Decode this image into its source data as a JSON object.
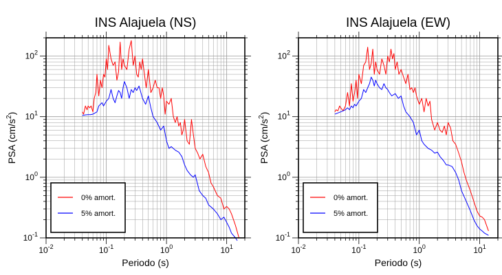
{
  "chart_data": [
    {
      "type": "line",
      "title": "INS Alajuela (NS)",
      "xlabel": "Periodo (s)",
      "ylabel_main": "PSA (cm/s",
      "ylabel_sup": "2",
      "ylabel_close": ")",
      "x_scale": "log",
      "y_scale": "log",
      "xlim": [
        0.01,
        20
      ],
      "ylim": [
        0.1,
        200
      ],
      "grid": true,
      "legend_position": "bottom-left",
      "x_ticks": [
        {
          "base": "10",
          "exp": "-2",
          "value": 0.01
        },
        {
          "base": "10",
          "exp": "-1",
          "value": 0.1
        },
        {
          "base": "10",
          "exp": "0",
          "value": 1
        },
        {
          "base": "10",
          "exp": "1",
          "value": 10
        }
      ],
      "y_ticks": [
        {
          "base": "10",
          "exp": "-1",
          "value": 0.1
        },
        {
          "base": "10",
          "exp": "0",
          "value": 1
        },
        {
          "base": "10",
          "exp": "1",
          "value": 10
        },
        {
          "base": "10",
          "exp": "2",
          "value": 100
        }
      ],
      "series": [
        {
          "name": "0% amort.",
          "color": "#ff0000",
          "x": [
            0.04,
            0.042,
            0.045,
            0.048,
            0.05,
            0.053,
            0.056,
            0.06,
            0.063,
            0.067,
            0.07,
            0.075,
            0.08,
            0.085,
            0.09,
            0.095,
            0.1,
            0.105,
            0.11,
            0.12,
            0.13,
            0.14,
            0.15,
            0.16,
            0.17,
            0.18,
            0.19,
            0.2,
            0.22,
            0.24,
            0.26,
            0.28,
            0.3,
            0.32,
            0.34,
            0.36,
            0.38,
            0.4,
            0.43,
            0.46,
            0.5,
            0.55,
            0.6,
            0.65,
            0.7,
            0.75,
            0.8,
            0.85,
            0.9,
            0.95,
            1.0,
            1.1,
            1.2,
            1.3,
            1.4,
            1.5,
            1.6,
            1.7,
            1.8,
            1.9,
            2.0,
            2.2,
            2.4,
            2.6,
            2.8,
            3.0,
            3.3,
            3.6,
            4.0,
            4.5,
            5.0,
            5.5,
            6.0,
            7.0,
            8.0,
            9.0,
            10.0,
            11.0,
            12.0,
            14.0,
            16.0
          ],
          "y": [
            12.0,
            11.0,
            15.0,
            13.0,
            15.0,
            14.0,
            15.0,
            12.0,
            20.0,
            25.0,
            50.0,
            22.0,
            40.0,
            30.0,
            50.0,
            45.0,
            90.0,
            60.0,
            150.0,
            90.0,
            70.0,
            80.0,
            40.0,
            55.0,
            170.0,
            60.0,
            90.0,
            70.0,
            60.0,
            130.0,
            180.0,
            70.0,
            100.0,
            50.0,
            45.0,
            80.0,
            60.0,
            90.0,
            50.0,
            30.0,
            60.0,
            25.0,
            30.0,
            40.0,
            30.0,
            30.0,
            20.0,
            30.0,
            22.0,
            11.0,
            18.0,
            16.0,
            20.0,
            10.0,
            8.0,
            10.0,
            7.0,
            8.0,
            5.0,
            6.0,
            9.0,
            4.0,
            3.5,
            9.0,
            5.0,
            3.0,
            2.5,
            2.0,
            2.4,
            1.5,
            1.2,
            0.8,
            0.7,
            0.5,
            0.45,
            0.3,
            0.33,
            0.3,
            0.25,
            0.16,
            0.1
          ]
        },
        {
          "name": "5% amort.",
          "color": "#0000ff",
          "x": [
            0.04,
            0.045,
            0.05,
            0.055,
            0.06,
            0.065,
            0.07,
            0.075,
            0.08,
            0.085,
            0.09,
            0.1,
            0.11,
            0.12,
            0.13,
            0.14,
            0.15,
            0.16,
            0.17,
            0.18,
            0.19,
            0.2,
            0.22,
            0.24,
            0.26,
            0.28,
            0.3,
            0.32,
            0.35,
            0.4,
            0.45,
            0.5,
            0.55,
            0.6,
            0.7,
            0.8,
            0.9,
            1.0,
            1.1,
            1.2,
            1.4,
            1.6,
            1.8,
            2.0,
            2.2,
            2.5,
            2.8,
            3.0,
            3.5,
            4.0,
            4.5,
            5.0,
            6.0,
            7.0,
            8.0,
            9.0,
            10.0,
            11.0,
            12.0,
            14.0,
            15.0
          ],
          "y": [
            10.5,
            10.7,
            10.8,
            10.8,
            11.0,
            11.5,
            12.0,
            15.0,
            16.0,
            17.0,
            15.0,
            18.0,
            20.0,
            28.0,
            20.0,
            17.0,
            22.0,
            27.0,
            25.0,
            20.0,
            30.0,
            38.0,
            30.0,
            20.0,
            28.0,
            25.0,
            30.0,
            27.0,
            32.0,
            20.0,
            16.0,
            22.0,
            14.0,
            10.0,
            8.0,
            6.0,
            7.0,
            4.0,
            3.0,
            3.2,
            2.8,
            2.6,
            2.2,
            1.6,
            1.3,
            1.1,
            1.0,
            1.1,
            0.6,
            0.5,
            0.45,
            0.35,
            0.3,
            0.25,
            0.2,
            0.22,
            0.18,
            0.15,
            0.12,
            0.1,
            0.09
          ]
        }
      ]
    },
    {
      "type": "line",
      "title": "INS Alajuela (EW)",
      "xlabel": "Periodo (s)",
      "ylabel_main": "PSA (cm/s",
      "ylabel_sup": "2",
      "ylabel_close": ")",
      "x_scale": "log",
      "y_scale": "log",
      "xlim": [
        0.01,
        20
      ],
      "ylim": [
        0.1,
        200
      ],
      "grid": true,
      "legend_position": "bottom-left",
      "x_ticks": [
        {
          "base": "10",
          "exp": "-2",
          "value": 0.01
        },
        {
          "base": "10",
          "exp": "-1",
          "value": 0.1
        },
        {
          "base": "10",
          "exp": "0",
          "value": 1
        },
        {
          "base": "10",
          "exp": "1",
          "value": 10
        }
      ],
      "y_ticks": [
        {
          "base": "10",
          "exp": "-1",
          "value": 0.1
        },
        {
          "base": "10",
          "exp": "0",
          "value": 1
        },
        {
          "base": "10",
          "exp": "1",
          "value": 10
        },
        {
          "base": "10",
          "exp": "2",
          "value": 100
        }
      ],
      "series": [
        {
          "name": "0% amort.",
          "color": "#ff0000",
          "x": [
            0.04,
            0.042,
            0.045,
            0.048,
            0.05,
            0.055,
            0.06,
            0.065,
            0.07,
            0.075,
            0.08,
            0.085,
            0.09,
            0.095,
            0.1,
            0.11,
            0.12,
            0.13,
            0.14,
            0.15,
            0.16,
            0.17,
            0.18,
            0.19,
            0.2,
            0.22,
            0.24,
            0.26,
            0.28,
            0.3,
            0.32,
            0.34,
            0.36,
            0.38,
            0.4,
            0.43,
            0.46,
            0.5,
            0.55,
            0.6,
            0.65,
            0.7,
            0.75,
            0.8,
            0.85,
            0.9,
            1.0,
            1.1,
            1.2,
            1.3,
            1.4,
            1.5,
            1.6,
            1.8,
            2.0,
            2.2,
            2.4,
            2.6,
            2.8,
            3.0,
            3.3,
            3.6,
            4.0,
            4.5,
            5.0,
            5.5,
            6.0,
            7.0,
            8.0,
            9.0,
            10.0,
            11.0,
            12.0,
            14.0
          ],
          "y": [
            12.0,
            13.0,
            12.5,
            15.0,
            14.0,
            12.5,
            15.0,
            25.0,
            15.0,
            35.0,
            18.0,
            25.0,
            40.0,
            20.0,
            50.0,
            35.0,
            70.0,
            80.0,
            140.0,
            60.0,
            75.0,
            130.0,
            50.0,
            80.0,
            60.0,
            50.0,
            90.0,
            70.0,
            50.0,
            100.0,
            80.0,
            130.0,
            90.0,
            110.0,
            60.0,
            80.0,
            50.0,
            60.0,
            45.0,
            35.0,
            50.0,
            28.0,
            30.0,
            25.0,
            30.0,
            22.0,
            16.0,
            20.0,
            12.0,
            20.0,
            15.0,
            18.0,
            9.0,
            6.0,
            8.0,
            6.0,
            5.5,
            7.0,
            5.0,
            8.0,
            6.5,
            4.0,
            3.5,
            2.5,
            1.8,
            1.2,
            0.9,
            0.6,
            0.4,
            0.28,
            0.23,
            0.22,
            0.2,
            0.13
          ]
        },
        {
          "name": "5% amort.",
          "color": "#0000ff",
          "x": [
            0.04,
            0.045,
            0.05,
            0.055,
            0.06,
            0.065,
            0.07,
            0.075,
            0.08,
            0.085,
            0.09,
            0.1,
            0.11,
            0.12,
            0.13,
            0.14,
            0.15,
            0.16,
            0.17,
            0.18,
            0.19,
            0.2,
            0.22,
            0.24,
            0.26,
            0.28,
            0.3,
            0.32,
            0.35,
            0.4,
            0.45,
            0.5,
            0.55,
            0.6,
            0.7,
            0.8,
            0.9,
            1.0,
            1.1,
            1.2,
            1.4,
            1.6,
            1.8,
            2.0,
            2.2,
            2.5,
            2.8,
            3.0,
            3.5,
            4.0,
            4.5,
            5.0,
            6.0,
            7.0,
            8.0,
            9.0,
            10.0,
            11.0,
            12.0,
            14.0
          ],
          "y": [
            11.0,
            11.5,
            12.0,
            12.5,
            13.0,
            14.0,
            13.0,
            15.0,
            14.0,
            16.0,
            15.0,
            18.0,
            20.0,
            28.0,
            25.0,
            30.0,
            35.0,
            45.0,
            40.0,
            32.0,
            40.0,
            35.0,
            30.0,
            28.0,
            35.0,
            30.0,
            28.0,
            25.0,
            22.0,
            24.0,
            20.0,
            22.0,
            15.0,
            12.0,
            10.0,
            8.0,
            5.0,
            6.0,
            4.0,
            3.5,
            3.0,
            2.8,
            2.5,
            2.6,
            2.2,
            1.9,
            1.6,
            1.6,
            1.5,
            1.2,
            0.9,
            0.6,
            0.4,
            0.28,
            0.2,
            0.16,
            0.14,
            0.13,
            0.12,
            0.11
          ]
        }
      ]
    }
  ]
}
